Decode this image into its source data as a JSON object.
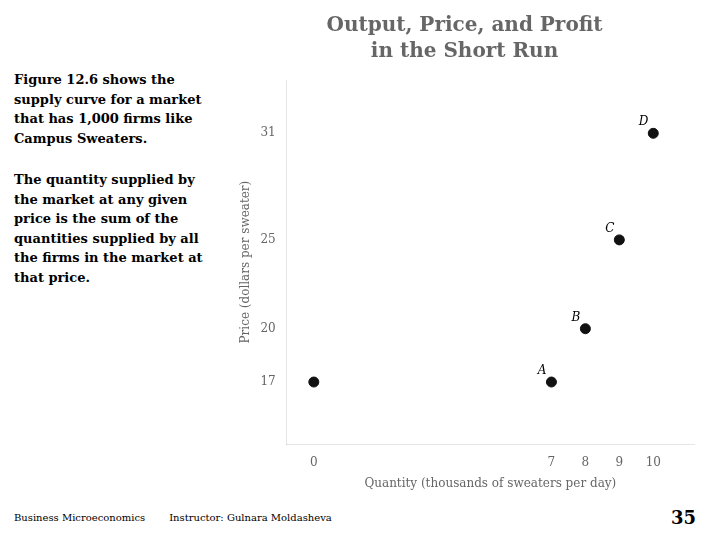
{
  "chart_data": {
    "type": "scatter",
    "title": "Output, Price, and Profit",
    "subtitle": "in the Short Run",
    "xlabel": "Quantity (thousands of sweaters per day)",
    "ylabel": "Price (dollars per sweater)",
    "x": [
      0,
      7,
      8,
      9,
      10
    ],
    "values": [
      17,
      17,
      20,
      25,
      31
    ],
    "color": "#111111",
    "xlim": [
      -0.8,
      11.2
    ],
    "ylim": [
      13.5,
      34
    ],
    "xticks": [
      0,
      7,
      8,
      9,
      10
    ],
    "yticks": [
      17,
      20,
      25,
      31
    ],
    "grid": false,
    "annotations": [
      {
        "x": 7,
        "y": 17,
        "text": "A"
      },
      {
        "x": 8,
        "y": 20,
        "text": "B"
      },
      {
        "x": 9,
        "y": 25,
        "text": "C"
      },
      {
        "x": 10,
        "y": 31,
        "text": "D"
      },
      {
        "text": "Figure 12.6 shows the\nsupply curve for a market\nthat has 1,000 firms like\nCampus Sweaters."
      },
      {
        "text": "The quantity supplied by\nthe market at any given\nprice is the sum of the\nquantities supplied by all\nthe firms in the market at\nthat price."
      },
      {
        "text": "Business Microeconomics"
      },
      {
        "text": "Instructor: Gulnara Moldasheva"
      },
      {
        "text": "35"
      }
    ]
  }
}
